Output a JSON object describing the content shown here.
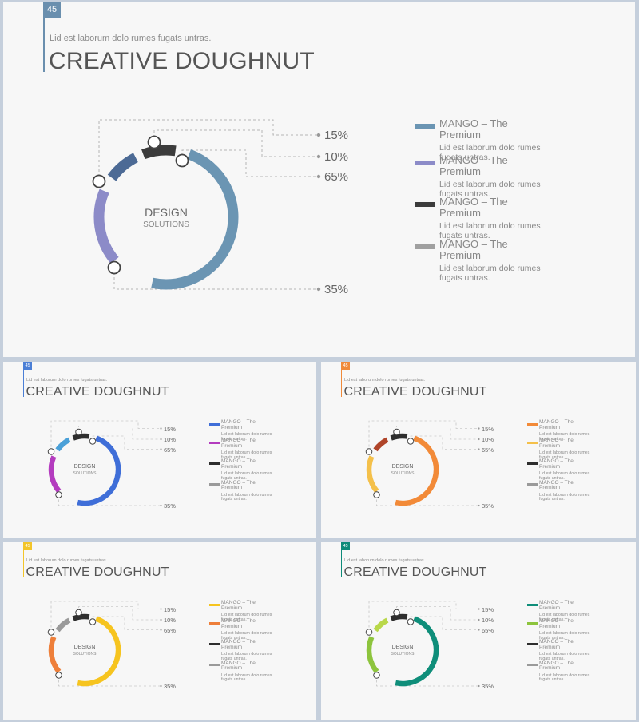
{
  "page_number": "45",
  "subtitle": "Lid est laborum dolo rumes fugats untras.",
  "title": "CREATIVE DOUGHNUT",
  "center": {
    "title": "DESIGN",
    "subtitle": "SOLUTIONS"
  },
  "percentages": [
    "15%",
    "10%",
    "65%",
    "35%"
  ],
  "legend": [
    {
      "title": "MANGO – The Premium",
      "desc": "Lid est laborum dolo rumes fugats untras."
    },
    {
      "title": "MANGO – The Premium",
      "desc": "Lid est laborum dolo rumes fugats untras."
    },
    {
      "title": "MANGO – The Premium",
      "desc": "Lid est laborum dolo rumes fugats untras."
    },
    {
      "title": "MANGO – The Premium",
      "desc": "Lid est laborum dolo rumes fugats untras."
    }
  ],
  "themes": [
    {
      "name": "steel",
      "accent": "#6a8fae",
      "colors": [
        "#6b95b3",
        "#8c8bc8",
        "#3c3c3c",
        "#a0a0a0"
      ],
      "top_arc": "#4c6a95"
    },
    {
      "name": "blue",
      "accent": "#4b7fd6",
      "colors": [
        "#3f6ed8",
        "#b43cbf",
        "#2e2e2e",
        "#9a9a9a"
      ],
      "top_arc": "#4aa0d8"
    },
    {
      "name": "orange",
      "accent": "#f08a3a",
      "colors": [
        "#f28a38",
        "#f4c04a",
        "#2e2e2e",
        "#9a9a9a"
      ],
      "top_arc": "#b0452a"
    },
    {
      "name": "yellow",
      "accent": "#f3c52a",
      "colors": [
        "#f6c41f",
        "#ee7f3a",
        "#2e2e2e",
        "#9a9a9a"
      ],
      "top_arc": "#9a9a9a"
    },
    {
      "name": "teal",
      "accent": "#0e8b79",
      "colors": [
        "#0f8e7a",
        "#8dc43d",
        "#2e2e2e",
        "#9a9a9a"
      ],
      "top_arc": "#b9d84a"
    }
  ]
}
